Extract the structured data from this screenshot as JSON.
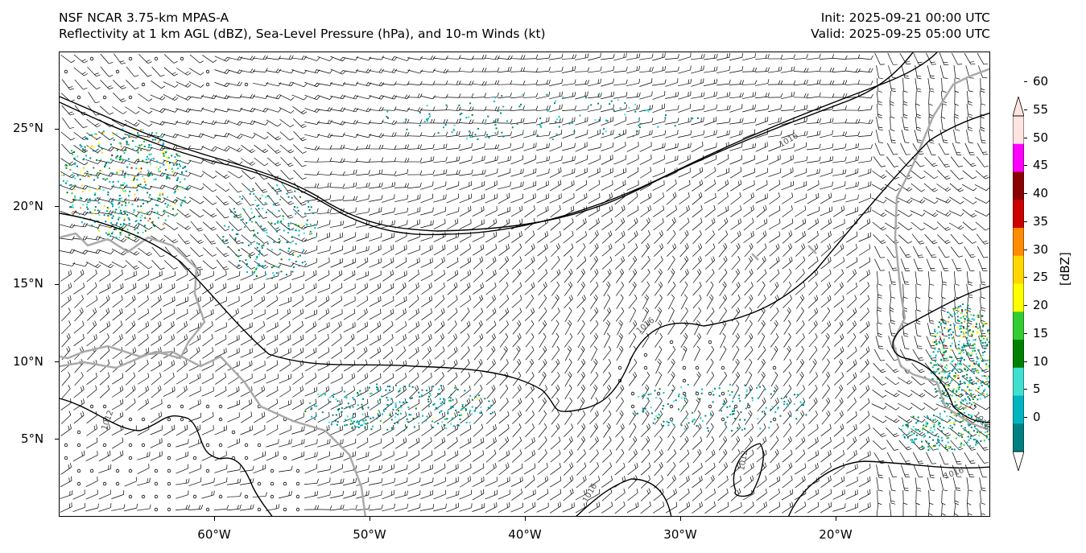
{
  "title": {
    "line1": "NSF NCAR 3.75-km MPAS-A",
    "line2": "Reflectivity at 1 km AGL (dBZ), Sea-Level Pressure (hPa), and 10-m Winds (kt)",
    "init": "Init: 2025-09-21 00:00 UTC",
    "valid": "Valid: 2025-09-25 05:00 UTC"
  },
  "axes": {
    "latitude_labels": [
      "25°N",
      "20°N",
      "15°N",
      "10°N",
      "5°N"
    ],
    "longitude_labels": [
      "60°W",
      "50°W",
      "40°W",
      "30°W",
      "20°W"
    ]
  },
  "map_extent": {
    "lon_min": -70,
    "lon_max": -10.5,
    "lat_min": 0,
    "lat_max": 30
  },
  "isobars": {
    "labels": [
      "1016",
      "1012",
      "1016",
      "1016",
      "1012",
      "1016",
      "1016"
    ],
    "color": "#000000"
  },
  "colorbar": {
    "unit_label": "[dBZ]",
    "tick_labels": [
      "0",
      "5",
      "10",
      "15",
      "20",
      "25",
      "30",
      "35",
      "40",
      "45",
      "50",
      "55",
      "60"
    ],
    "bins": [
      {
        "from": 0,
        "to": 5,
        "color": "#008080"
      },
      {
        "from": 5,
        "to": 10,
        "color": "#00b5c0"
      },
      {
        "from": 10,
        "to": 15,
        "color": "#40e0d0"
      },
      {
        "from": 15,
        "to": 20,
        "color": "#008000"
      },
      {
        "from": 20,
        "to": 25,
        "color": "#32cd32"
      },
      {
        "from": 25,
        "to": 30,
        "color": "#ffff00"
      },
      {
        "from": 30,
        "to": 35,
        "color": "#ffd700"
      },
      {
        "from": 35,
        "to": 40,
        "color": "#ff8c00"
      },
      {
        "from": 40,
        "to": 45,
        "color": "#cc0000"
      },
      {
        "from": 45,
        "to": 50,
        "color": "#8b0000"
      },
      {
        "from": 50,
        "to": 55,
        "color": "#ff00ff"
      },
      {
        "from": 55,
        "to": 60,
        "color": "#ffe4e1"
      }
    ],
    "extend": "both"
  },
  "colors": {
    "coastline": "#aaaaaa",
    "isobar": "#000000",
    "barb": "#000000"
  }
}
